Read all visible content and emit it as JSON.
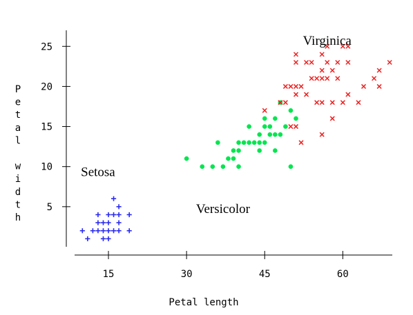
{
  "chart_data": {
    "type": "scatter",
    "xlabel": "Petal length",
    "ylabel": "Petal width",
    "xlim": [
      8.5,
      69.5
    ],
    "ylim": [
      0,
      27
    ],
    "x_ticks": [
      15,
      30,
      45,
      60
    ],
    "y_ticks": [
      5,
      10,
      15,
      20,
      25
    ],
    "grid": false,
    "legend": "none",
    "annotations": [
      {
        "text": "Setosa",
        "x": 13,
        "y": 8.8
      },
      {
        "text": "Versicolor",
        "x": 37,
        "y": 4.2
      },
      {
        "text": "Virginica",
        "x": 57,
        "y": 25.2
      }
    ],
    "series": [
      {
        "name": "Setosa",
        "marker": "plus",
        "color": "#2a2af0",
        "points": [
          [
            10,
            2
          ],
          [
            11,
            1
          ],
          [
            12,
            2
          ],
          [
            13,
            2
          ],
          [
            13,
            3
          ],
          [
            13,
            4
          ],
          [
            14,
            1
          ],
          [
            14,
            2
          ],
          [
            14,
            3
          ],
          [
            15,
            1
          ],
          [
            15,
            2
          ],
          [
            15,
            3
          ],
          [
            15,
            4
          ],
          [
            16,
            2
          ],
          [
            16,
            4
          ],
          [
            16,
            6
          ],
          [
            17,
            2
          ],
          [
            17,
            3
          ],
          [
            17,
            4
          ],
          [
            17,
            5
          ],
          [
            19,
            2
          ],
          [
            19,
            4
          ]
        ]
      },
      {
        "name": "Versicolor",
        "marker": "diamond",
        "color": "#00e64d",
        "points": [
          [
            30,
            11
          ],
          [
            33,
            10
          ],
          [
            35,
            10
          ],
          [
            36,
            13
          ],
          [
            37,
            10
          ],
          [
            38,
            11
          ],
          [
            39,
            11
          ],
          [
            39,
            12
          ],
          [
            40,
            10
          ],
          [
            40,
            12
          ],
          [
            40,
            13
          ],
          [
            41,
            13
          ],
          [
            42,
            13
          ],
          [
            42,
            15
          ],
          [
            43,
            13
          ],
          [
            44,
            12
          ],
          [
            44,
            13
          ],
          [
            44,
            14
          ],
          [
            45,
            13
          ],
          [
            45,
            15
          ],
          [
            45,
            16
          ],
          [
            46,
            14
          ],
          [
            46,
            15
          ],
          [
            47,
            12
          ],
          [
            47,
            14
          ],
          [
            47,
            16
          ],
          [
            48,
            14
          ],
          [
            48,
            18
          ],
          [
            49,
            15
          ],
          [
            50,
            10
          ],
          [
            50,
            17
          ],
          [
            51,
            16
          ]
        ]
      },
      {
        "name": "Virginica",
        "marker": "x",
        "color": "#f02020",
        "points": [
          [
            45,
            17
          ],
          [
            48,
            18
          ],
          [
            49,
            18
          ],
          [
            49,
            20
          ],
          [
            50,
            20
          ],
          [
            50,
            15
          ],
          [
            51,
            15
          ],
          [
            51,
            19
          ],
          [
            51,
            20
          ],
          [
            51,
            23
          ],
          [
            51,
            24
          ],
          [
            52,
            13
          ],
          [
            52,
            20
          ],
          [
            53,
            19
          ],
          [
            53,
            23
          ],
          [
            54,
            21
          ],
          [
            54,
            23
          ],
          [
            55,
            18
          ],
          [
            55,
            21
          ],
          [
            56,
            14
          ],
          [
            56,
            18
          ],
          [
            56,
            21
          ],
          [
            56,
            22
          ],
          [
            56,
            24
          ],
          [
            57,
            21
          ],
          [
            57,
            23
          ],
          [
            57,
            25
          ],
          [
            58,
            16
          ],
          [
            58,
            18
          ],
          [
            58,
            22
          ],
          [
            59,
            21
          ],
          [
            59,
            23
          ],
          [
            60,
            18
          ],
          [
            60,
            25
          ],
          [
            61,
            19
          ],
          [
            61,
            25
          ],
          [
            61,
            23
          ],
          [
            63,
            18
          ],
          [
            64,
            20
          ],
          [
            66,
            21
          ],
          [
            67,
            20
          ],
          [
            67,
            22
          ],
          [
            69,
            23
          ]
        ]
      }
    ]
  }
}
